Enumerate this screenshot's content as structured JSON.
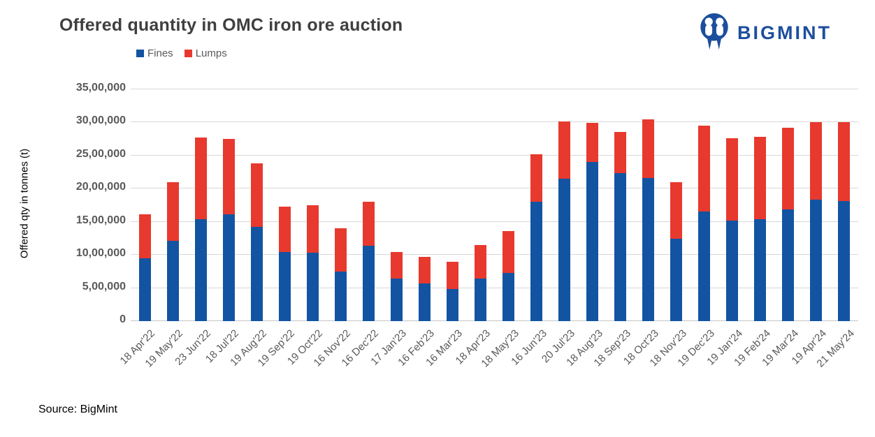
{
  "header": {
    "title": "Offered quantity in OMC iron ore auction"
  },
  "logo": {
    "text": "BIGMINT",
    "color": "#1C4E9D"
  },
  "source": {
    "label": "Source: BigMint"
  },
  "chart_data": {
    "type": "bar",
    "stacked": true,
    "title": "Offered quantity in OMC iron ore auction",
    "xlabel": "",
    "ylabel": "Offered qty in tonnes (t)",
    "grid": true,
    "legend_position": "top-left",
    "ylim": [
      0,
      3500000
    ],
    "ytick_step": 500000,
    "ytick_labels": [
      "0",
      "5,00,000",
      "10,00,000",
      "15,00,000",
      "20,00,000",
      "25,00,000",
      "30,00,000",
      "35,00,000"
    ],
    "categories": [
      "18 Apr'22",
      "19 May'22",
      "23 Jun'22",
      "18 Jul'22",
      "19 Aug'22",
      "19 Sep'22",
      "19 Oct'22",
      "16 Nov'22",
      "16 Dec'22",
      "17 Jan'23",
      "16 Feb'23",
      "16 Mar'23",
      "18 Apr'23",
      "18 May'23",
      "16 Jun'23",
      "20 Jul'23",
      "18 Aug'23",
      "18 Sep'23",
      "18 Oct'23",
      "18 Nov'23",
      "19 Dec'23",
      "19 Jan'24",
      "19 Feb'24",
      "19 Mar'24",
      "19 Apr'24",
      "21 May'24"
    ],
    "series": [
      {
        "name": "Fines",
        "color": "#1254A2",
        "values": [
          950000,
          1210000,
          1540000,
          1610000,
          1420000,
          1040000,
          1030000,
          750000,
          1140000,
          640000,
          570000,
          480000,
          640000,
          730000,
          1800000,
          2150000,
          2400000,
          2240000,
          2160000,
          1240000,
          1660000,
          1520000,
          1540000,
          1690000,
          1830000,
          1810000
        ]
      },
      {
        "name": "Lumps",
        "color": "#E8392E",
        "values": [
          660000,
          890000,
          1230000,
          1140000,
          960000,
          690000,
          720000,
          650000,
          660000,
          400000,
          400000,
          420000,
          510000,
          630000,
          720000,
          860000,
          590000,
          620000,
          890000,
          860000,
          1290000,
          1240000,
          1240000,
          1230000,
          1170000,
          1190000
        ]
      }
    ]
  }
}
